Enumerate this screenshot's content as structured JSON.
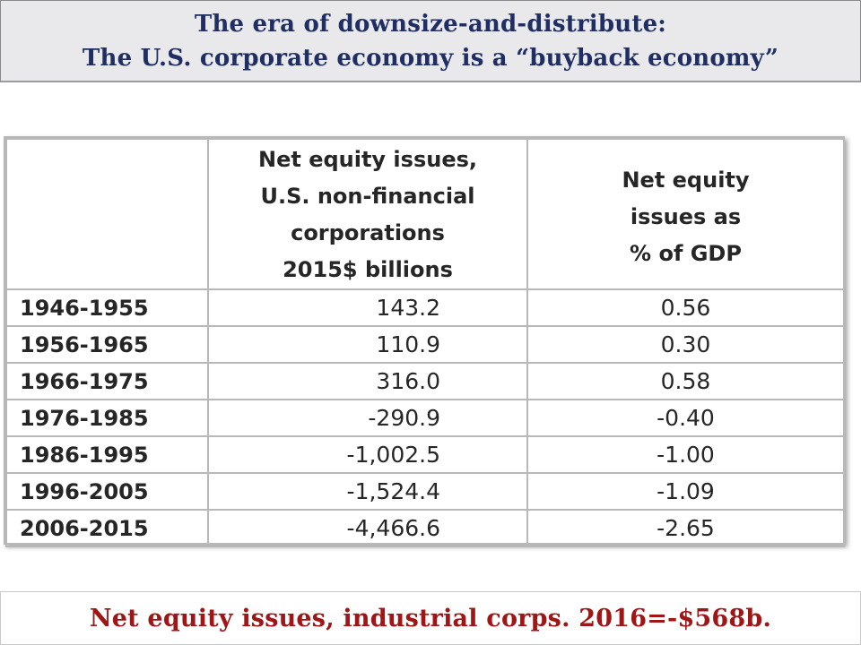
{
  "title": {
    "line1": "The era of downsize-and-distribute:",
    "line2": "The U.S. corporate economy is a “buyback economy”"
  },
  "table": {
    "header": {
      "col1": "",
      "col2_lines": [
        "Net equity issues,",
        "U.S. non-financial",
        "corporations",
        "2015$ billions"
      ],
      "col3_lines": [
        "Net equity",
        "issues as",
        "% of GDP"
      ]
    },
    "rows": [
      {
        "period": "1946-1955",
        "billions": "143.2",
        "pct_gdp": "0.56"
      },
      {
        "period": "1956-1965",
        "billions": "110.9",
        "pct_gdp": "0.30"
      },
      {
        "period": "1966-1975",
        "billions": "316.0",
        "pct_gdp": "0.58"
      },
      {
        "period": "1976-1985",
        "billions": "-290.9",
        "pct_gdp": "-0.40"
      },
      {
        "period": "1986-1995",
        "billions": "-1,002.5",
        "pct_gdp": "-1.00"
      },
      {
        "period": "1996-2005",
        "billions": "-1,524.4",
        "pct_gdp": "-1.09"
      },
      {
        "period": "2006-2015",
        "billions": "-4,466.6",
        "pct_gdp": "-2.65"
      }
    ]
  },
  "footer": {
    "text": "Net equity issues, industrial corps. 2016=-$568b."
  },
  "colors": {
    "title_text": "#1f2f63",
    "title_bg": "#e9e9ec",
    "footer_text": "#a01515",
    "table_border": "#b8b8b8"
  }
}
